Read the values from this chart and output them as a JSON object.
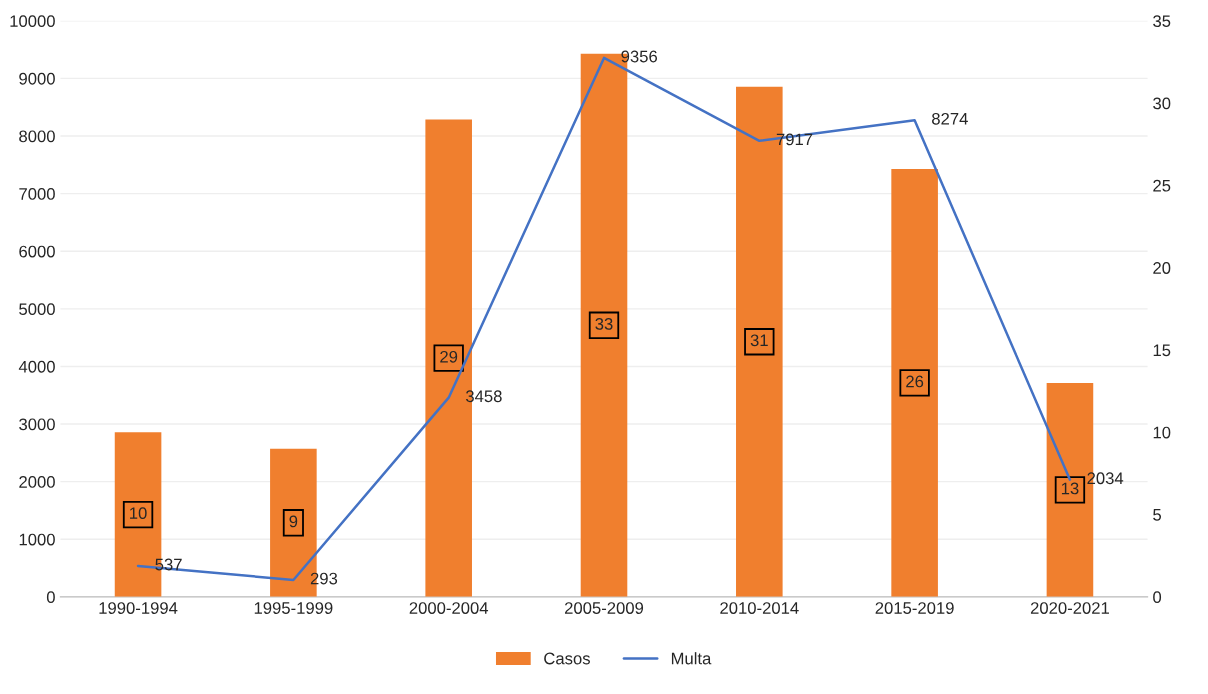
{
  "chart_data": {
    "type": "bar",
    "categories": [
      "1990-1994",
      "1995-1999",
      "2000-2004",
      "2005-2009",
      "2010-2014",
      "2015-2019",
      "2020-2021"
    ],
    "series": [
      {
        "name": "Casos",
        "axis": "y2",
        "color": "#f07f2e",
        "values": [
          10,
          9,
          29,
          33,
          31,
          26,
          13
        ]
      },
      {
        "name": "Multa",
        "type": "line",
        "axis": "y",
        "color": "#4472c4",
        "values": [
          537,
          293,
          3458,
          9356,
          7917,
          8274,
          2034
        ]
      }
    ],
    "ylim": [
      0,
      10000
    ],
    "yticks": [
      0,
      1000,
      2000,
      3000,
      4000,
      5000,
      6000,
      7000,
      8000,
      9000,
      10000
    ],
    "y2lim": [
      0,
      35
    ],
    "y2ticks": [
      0,
      5,
      10,
      15,
      20,
      25,
      30,
      35
    ],
    "grid": "y",
    "legend": "bottom",
    "data_labels": true,
    "marker": "none",
    "line_style": "solid"
  }
}
